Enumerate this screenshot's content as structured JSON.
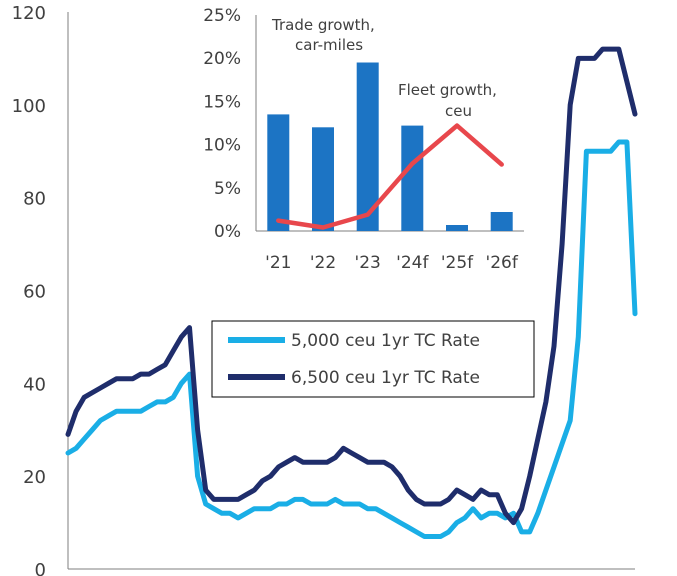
{
  "colors": {
    "ceu5000": "#1AAEE6",
    "ceu6500": "#1F2D6B",
    "bar": "#1C74C4",
    "fleet": "#E8474C",
    "axis": "#7F7F7F",
    "text": "#404040"
  },
  "chart_data": [
    {
      "type": "line",
      "title": "",
      "ylabel": "",
      "ylim": [
        0,
        120
      ],
      "yticks": [
        "0",
        "20",
        "40",
        "60",
        "80",
        "100",
        "120"
      ],
      "legend": {
        "placement": "middle-right",
        "items": [
          "5,000 ceu 1yr TC Rate",
          "6,500 ceu 1yr TC Rate"
        ]
      },
      "x_index_max": 140,
      "series": [
        {
          "name": "5,000 ceu 1yr TC Rate",
          "color_key": "ceu5000",
          "x": [
            0,
            2,
            4,
            6,
            8,
            10,
            12,
            14,
            16,
            18,
            20,
            22,
            24,
            26,
            28,
            30,
            32,
            34,
            36,
            38,
            40,
            42,
            44,
            46,
            48,
            50,
            52,
            54,
            56,
            58,
            60,
            62,
            64,
            66,
            68,
            70,
            72,
            74,
            76,
            78,
            80,
            82,
            84,
            86,
            88,
            90,
            92,
            94,
            96,
            98,
            100,
            102,
            104,
            106,
            108,
            110,
            112,
            114,
            116,
            118,
            120,
            122,
            124,
            126,
            128,
            130,
            132,
            134,
            136,
            138,
            140
          ],
          "y": [
            25,
            26,
            28,
            30,
            32,
            33,
            34,
            34,
            34,
            34,
            35,
            36,
            36,
            37,
            40,
            42,
            20,
            14,
            13,
            12,
            12,
            11,
            12,
            13,
            13,
            13,
            14,
            14,
            15,
            15,
            14,
            14,
            14,
            15,
            14,
            14,
            14,
            13,
            13,
            12,
            11,
            10,
            9,
            8,
            7,
            7,
            7,
            8,
            10,
            11,
            13,
            11,
            12,
            12,
            11,
            12,
            8,
            8,
            12,
            17,
            22,
            27,
            32,
            50,
            90,
            90,
            90,
            90,
            92,
            92,
            55
          ]
        },
        {
          "name": "6,500 ceu 1yr TC Rate",
          "color_key": "ceu6500",
          "x": [
            0,
            2,
            4,
            6,
            8,
            10,
            12,
            14,
            16,
            18,
            20,
            22,
            24,
            26,
            28,
            30,
            32,
            34,
            36,
            38,
            40,
            42,
            44,
            46,
            48,
            50,
            52,
            54,
            56,
            58,
            60,
            62,
            64,
            66,
            68,
            70,
            72,
            74,
            76,
            78,
            80,
            82,
            84,
            86,
            88,
            90,
            92,
            94,
            96,
            98,
            100,
            102,
            104,
            106,
            108,
            110,
            112,
            114,
            116,
            118,
            120,
            122,
            124,
            126,
            128,
            130,
            132,
            134,
            136,
            138,
            140
          ],
          "y": [
            29,
            34,
            37,
            38,
            39,
            40,
            41,
            41,
            41,
            42,
            42,
            43,
            44,
            47,
            50,
            52,
            30,
            17,
            15,
            15,
            15,
            15,
            16,
            17,
            19,
            20,
            22,
            23,
            24,
            23,
            23,
            23,
            23,
            24,
            26,
            25,
            24,
            23,
            23,
            23,
            22,
            20,
            17,
            15,
            14,
            14,
            14,
            15,
            17,
            16,
            15,
            17,
            16,
            16,
            12,
            10,
            13,
            20,
            28,
            36,
            48,
            70,
            100,
            110,
            110,
            110,
            112,
            112,
            112,
            105,
            98
          ]
        }
      ]
    },
    {
      "type": "bar+line",
      "title": "",
      "categories": [
        "'21",
        "'22",
        "'23",
        "'24f",
        "'25f",
        "'26f"
      ],
      "ylim": [
        0,
        25
      ],
      "yticks": [
        "0%",
        "5%",
        "10%",
        "15%",
        "20%",
        "25%"
      ],
      "series": [
        {
          "name": "Trade growth, car-miles",
          "type": "bar",
          "color_key": "bar",
          "values": [
            13.5,
            12,
            19.5,
            12.2,
            0.7,
            2.2
          ]
        },
        {
          "name": "Fleet growth, ceu",
          "type": "line",
          "color_key": "fleet",
          "values": [
            1.2,
            0.4,
            1.9,
            7.8,
            12.2,
            7.7
          ]
        }
      ],
      "annotations": {
        "trade": [
          "Trade growth,",
          "car-miles"
        ],
        "fleet": [
          "Fleet growth,",
          "ceu"
        ]
      }
    }
  ]
}
